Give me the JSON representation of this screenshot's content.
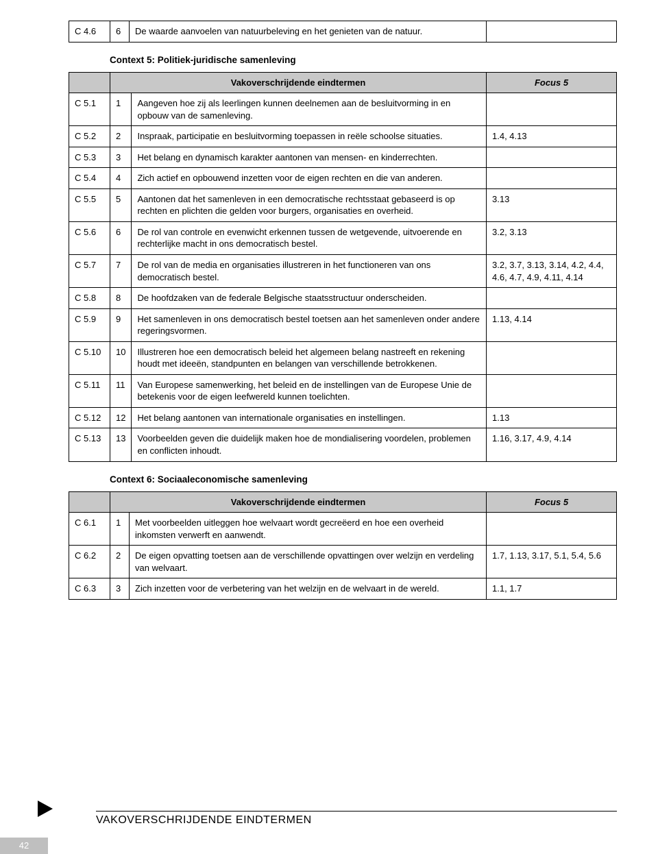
{
  "topTable": {
    "rows": [
      {
        "code": "C 4.6",
        "num": "6",
        "text": "De waarde aanvoelen van natuurbeleving en het genieten van de natuur.",
        "focus": ""
      }
    ]
  },
  "section5": {
    "heading": "Context 5: Politiek-juridische samenleving",
    "header_left": "Vakoverschrijdende eindtermen",
    "header_right": "Focus 5",
    "rows": [
      {
        "code": "C 5.1",
        "num": "1",
        "text": "Aangeven hoe zij als leerlingen kunnen deelnemen aan de besluitvorming in en opbouw van de samenleving.",
        "focus": ""
      },
      {
        "code": "C 5.2",
        "num": "2",
        "text": "Inspraak, participatie en besluitvorming toepassen in reële schoolse situaties.",
        "focus": "1.4, 4.13"
      },
      {
        "code": "C 5.3",
        "num": "3",
        "text": "Het belang en dynamisch karakter aantonen van mensen- en kinderrechten.",
        "focus": ""
      },
      {
        "code": "C 5.4",
        "num": "4",
        "text": "Zich actief en opbouwend inzetten voor de eigen rechten en die van anderen.",
        "focus": ""
      },
      {
        "code": "C 5.5",
        "num": "5",
        "text": "Aantonen dat het samenleven in een democratische rechtsstaat gebaseerd is op rechten en plichten die gelden voor burgers, organisaties en overheid.",
        "focus": "3.13"
      },
      {
        "code": "C 5.6",
        "num": "6",
        "text": "De rol van controle en evenwicht erkennen tussen de wetgevende, uitvoerende en rechterlijke macht in ons democratisch bestel.",
        "focus": "3.2, 3.13"
      },
      {
        "code": "C 5.7",
        "num": "7",
        "text": "De rol van de media en organisaties illustreren in het functioneren van ons democratisch bestel.",
        "focus": "3.2, 3.7, 3.13, 3.14, 4.2, 4.4, 4.6, 4.7, 4.9, 4.11, 4.14"
      },
      {
        "code": "C 5.8",
        "num": "8",
        "text": "De hoofdzaken van de federale Belgische staatsstructuur onderscheiden.",
        "focus": ""
      },
      {
        "code": "C 5.9",
        "num": "9",
        "text": "Het samenleven in ons democratisch bestel toetsen aan het samenleven onder andere regeringsvormen.",
        "focus": "1.13, 4.14"
      },
      {
        "code": "C 5.10",
        "num": "10",
        "text": "Illustreren hoe een democratisch beleid het algemeen belang nastreeft en rekening houdt met ideeën, standpunten en belangen van verschillende betrokkenen.",
        "focus": ""
      },
      {
        "code": "C 5.11",
        "num": "11",
        "text": "Van Europese samenwerking, het beleid en de instellingen van de Europese Unie de betekenis voor de eigen leefwereld kunnen toelichten.",
        "focus": ""
      },
      {
        "code": "C 5.12",
        "num": "12",
        "text": "Het belang aantonen van internationale organisaties en instellingen.",
        "focus": "1.13"
      },
      {
        "code": "C 5.13",
        "num": "13",
        "text": "Voorbeelden geven die duidelijk maken hoe de mondialisering voordelen, problemen en conflicten inhoudt.",
        "focus": "1.16, 3.17, 4.9, 4.14"
      }
    ]
  },
  "section6": {
    "heading": "Context 6: Sociaaleconomische samenleving",
    "header_left": "Vakoverschrijdende eindtermen",
    "header_right": "Focus 5",
    "rows": [
      {
        "code": "C 6.1",
        "num": "1",
        "text": "Met voorbeelden uitleggen hoe welvaart wordt gecreëerd en hoe een overheid inkomsten verwerft en aanwendt.",
        "focus": ""
      },
      {
        "code": "C 6.2",
        "num": "2",
        "text": "De eigen opvatting toetsen aan de verschillende opvattingen over welzijn en verdeling van welvaart.",
        "focus": "1.7, 1.13, 3.17, 5.1, 5.4, 5.6"
      },
      {
        "code": "C 6.3",
        "num": "3",
        "text": "Zich inzetten voor de verbetering van het welzijn en de welvaart in de wereld.",
        "focus": "1.1, 1.7"
      }
    ]
  },
  "footer": {
    "title": "VAKOVERSCHRIJDENDE EINDTERMEN",
    "page": "42"
  }
}
